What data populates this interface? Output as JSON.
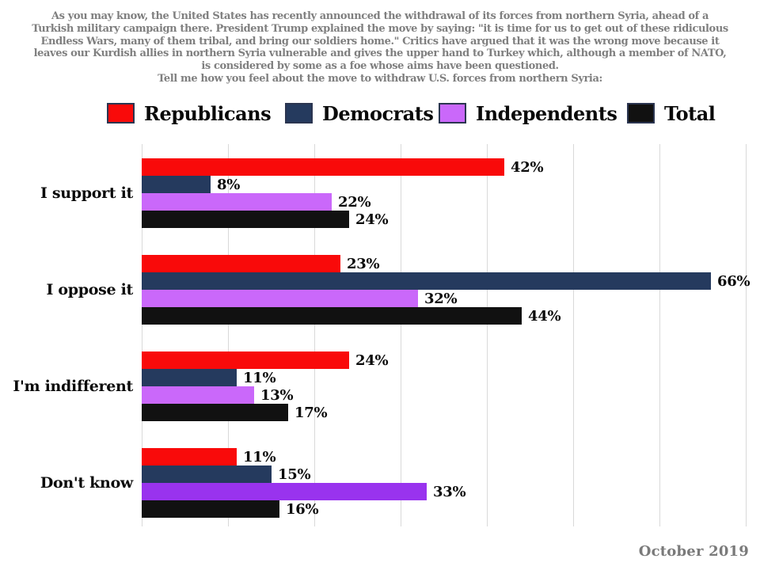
{
  "question": {
    "lines": [
      "As you may know, the United States has recently announced the withdrawal of its forces from northern Syria, ahead of a",
      "Turkish military campaign there. President Trump explained the move by saying: \"it is time for us to get out of these ridiculous",
      "Endless Wars, many of them tribal, and bring our soldiers home.\" Critics have argued that it was the wrong move because it",
      "leaves our Kurdish allies in northern Syria vulnerable and gives the upper hand to Turkey which, although a member of NATO,",
      "is considered by some as a foe whose aims have been questioned.",
      "Tell me how you feel about the move to withdraw U.S. forces from northern Syria:"
    ],
    "text_color": "#7f7f7f"
  },
  "footer": {
    "date": "October 2019"
  },
  "colors": {
    "grid": "#d9d9d9",
    "swatch_border": "#2b3550",
    "value_label": "#0a0a0a"
  },
  "chart_data": {
    "type": "bar",
    "orientation": "horizontal",
    "title": "Tell me how you feel about the move to withdraw U.S. forces from northern Syria",
    "categories": [
      "I support it",
      "I oppose it",
      "I'm indifferent",
      "Don't know"
    ],
    "series": [
      {
        "name": "Republicans",
        "color": "#f90a0a",
        "values": [
          42,
          23,
          24,
          11
        ]
      },
      {
        "name": "Democrats",
        "color": "#253a5e",
        "values": [
          8,
          66,
          11,
          15
        ]
      },
      {
        "name": "Independents",
        "color": "#ca68fa",
        "values": [
          22,
          32,
          13,
          33
        ],
        "bar_colors": [
          "#ca68fa",
          "#ca68fa",
          "#ca68fa",
          "#9933ee"
        ]
      },
      {
        "name": "Total",
        "color": "#111111",
        "values": [
          24,
          44,
          17,
          16
        ]
      }
    ],
    "value_label_format": "{v}%",
    "xlim": [
      0,
      70
    ],
    "grid_step": 10,
    "grid": true,
    "axis_tick_labels_shown": false,
    "legend_position": "top"
  }
}
